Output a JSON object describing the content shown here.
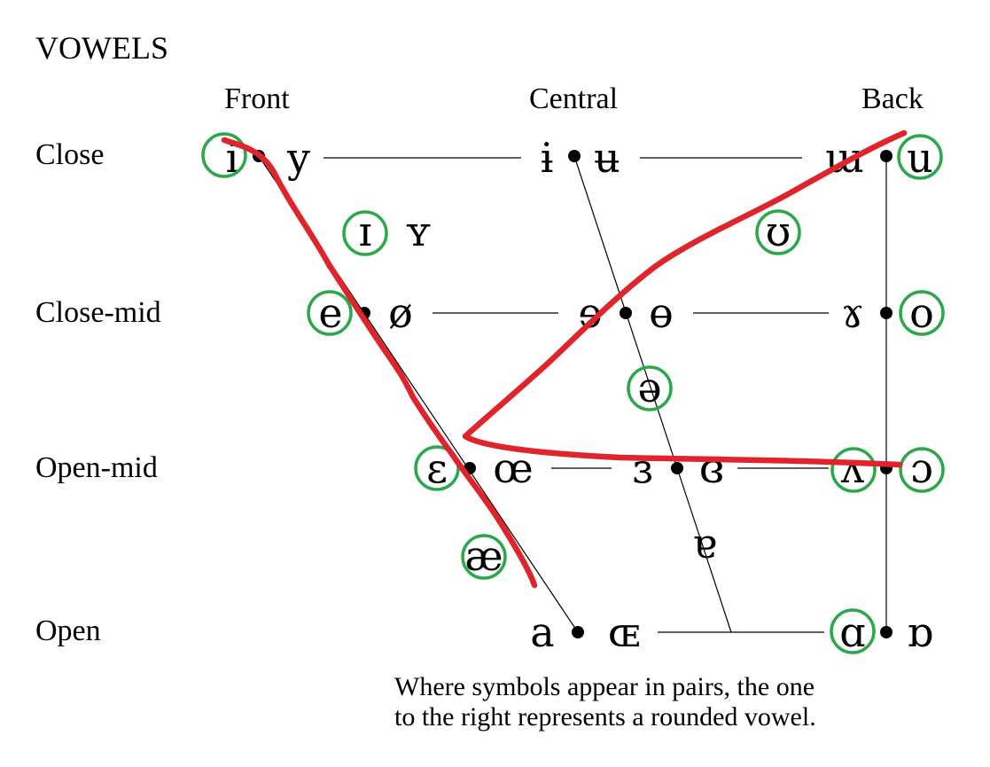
{
  "title": "VOWELS",
  "columns": {
    "front": "Front",
    "central": "Central",
    "back": "Back"
  },
  "rows": {
    "close": "Close",
    "close_mid": "Close-mid",
    "open_mid": "Open-mid",
    "open": "Open"
  },
  "symbols": {
    "close_front_unrounded": "i",
    "close_front_rounded": "y",
    "close_central_unrounded": "ɨ",
    "close_central_rounded": "ʉ",
    "close_back_unrounded": "ɯ",
    "close_back_rounded": "u",
    "near_close_front_unrounded": "ɪ",
    "near_close_front_rounded": "ʏ",
    "near_close_back_rounded": "ʊ",
    "close_mid_front_unrounded": "e",
    "close_mid_front_rounded": "ø",
    "close_mid_central_unrounded": "ɘ",
    "close_mid_central_rounded": "ɵ",
    "close_mid_back_unrounded": "ɤ",
    "close_mid_back_rounded": "o",
    "mid_central": "ə",
    "open_mid_front_unrounded": "ɛ",
    "open_mid_front_rounded": "œ",
    "open_mid_central_unrounded": "ɜ",
    "open_mid_central_rounded": "ɞ",
    "open_mid_back_unrounded": "ʌ",
    "open_mid_back_rounded": "ɔ",
    "near_open_front": "æ",
    "near_open_central": "ɐ",
    "open_front_unrounded": "a",
    "open_front_rounded": "ɶ",
    "open_back_unrounded": "ɑ",
    "open_back_rounded": "ɒ"
  },
  "note": {
    "line1": "Where symbols appear in pairs, the one",
    "line2": "to the right represents a rounded vowel."
  },
  "annotation_colors": {
    "circle": "#2aa84a",
    "scribble": "#e0242c"
  }
}
